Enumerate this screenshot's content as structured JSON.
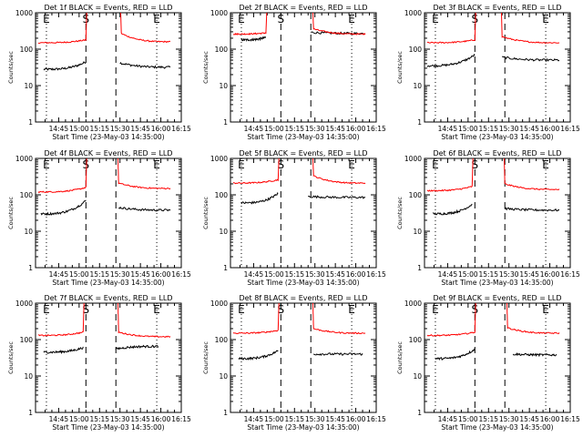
{
  "colors": {
    "events": "#000000",
    "lld": "#ff0000",
    "background": "#ffffff"
  },
  "chart_data": {
    "type": "line",
    "layout": "3x3 grid of panels",
    "yscale": "log",
    "ylim": [
      1,
      1000
    ],
    "ytick_labels": [
      "1",
      "10",
      "100",
      "1000"
    ],
    "ylabel": "Counts/sec",
    "xtick_labels": [
      "14:45",
      "15:00",
      "15:15",
      "15:30",
      "15:45",
      "16:00",
      "16:15"
    ],
    "xlim_minutes_after_start": [
      -7,
      100
    ],
    "xlabel": "Start Time (23-May-03 14:35:00)",
    "interval_markers": [
      {
        "label": "E",
        "minutes": 1,
        "style": "dotted"
      },
      {
        "label": "S",
        "minutes": 30,
        "style": "dashed"
      },
      {
        "label": "",
        "minutes": 52,
        "style": "dashed"
      },
      {
        "label": "E",
        "minutes": 82,
        "style": "dotted"
      }
    ],
    "panels": [
      {
        "title": "Det 1f BLACK = Events, RED = LLD",
        "series": [
          {
            "name": "Events",
            "color": "#000000",
            "before": [
              [
                -1,
                28
              ],
              [
                30,
                45
              ]
            ],
            "after": [
              [
                55,
                42
              ],
              [
                92,
                32
              ]
            ]
          },
          {
            "name": "LLD",
            "color": "#ff0000",
            "before": [
              [
                -5,
                150
              ],
              [
                30,
                180
              ]
            ],
            "after": [
              [
                56,
                270
              ],
              [
                92,
                160
              ]
            ]
          }
        ]
      },
      {
        "title": "Det 2f BLACK = Events, RED = LLD",
        "series": [
          {
            "name": "Events",
            "color": "#000000",
            "before": [
              [
                1,
                180
              ],
              [
                19,
                210
              ]
            ],
            "after": [
              [
                52,
                290
              ],
              [
                92,
                270
              ]
            ]
          },
          {
            "name": "LLD",
            "color": "#ff0000",
            "before": [
              [
                -5,
                260
              ],
              [
                19,
                280
              ]
            ],
            "after": [
              [
                54,
                360
              ],
              [
                92,
                260
              ]
            ]
          }
        ]
      },
      {
        "title": "Det 3f BLACK = Events, RED = LLD",
        "series": [
          {
            "name": "Events",
            "color": "#000000",
            "before": [
              [
                -5,
                35
              ],
              [
                30,
                70
              ]
            ],
            "after": [
              [
                50,
                60
              ],
              [
                92,
                50
              ]
            ]
          },
          {
            "name": "LLD",
            "color": "#ff0000",
            "before": [
              [
                -5,
                150
              ],
              [
                30,
                180
              ]
            ],
            "after": [
              [
                50,
                220
              ],
              [
                92,
                150
              ]
            ]
          }
        ]
      },
      {
        "title": "Det 4f BLACK = Events, RED = LLD",
        "series": [
          {
            "name": "Events",
            "color": "#000000",
            "before": [
              [
                -3,
                30
              ],
              [
                30,
                70
              ]
            ],
            "after": [
              [
                54,
                45
              ],
              [
                92,
                38
              ]
            ]
          },
          {
            "name": "LLD",
            "color": "#ff0000",
            "before": [
              [
                -5,
                120
              ],
              [
                30,
                160
              ]
            ],
            "after": [
              [
                54,
                210
              ],
              [
                92,
                150
              ]
            ]
          }
        ]
      },
      {
        "title": "Det 5f BLACK = Events, RED = LLD",
        "series": [
          {
            "name": "Events",
            "color": "#000000",
            "before": [
              [
                1,
                60
              ],
              [
                28,
                110
              ]
            ],
            "after": [
              [
                50,
                90
              ],
              [
                92,
                85
              ]
            ]
          },
          {
            "name": "LLD",
            "color": "#ff0000",
            "before": [
              [
                -5,
                210
              ],
              [
                28,
                260
              ]
            ],
            "after": [
              [
                54,
                330
              ],
              [
                92,
                210
              ]
            ]
          }
        ]
      },
      {
        "title": "Det 6f BLACK = Events, RED = LLD",
        "series": [
          {
            "name": "Events",
            "color": "#000000",
            "before": [
              [
                -1,
                30
              ],
              [
                28,
                55
              ]
            ],
            "after": [
              [
                52,
                42
              ],
              [
                92,
                38
              ]
            ]
          },
          {
            "name": "LLD",
            "color": "#ff0000",
            "before": [
              [
                -5,
                130
              ],
              [
                28,
                170
              ]
            ],
            "after": [
              [
                52,
                200
              ],
              [
                92,
                140
              ]
            ]
          }
        ]
      },
      {
        "title": "Det 7f BLACK = Events, RED = LLD",
        "series": [
          {
            "name": "Events",
            "color": "#000000",
            "before": [
              [
                -1,
                45
              ],
              [
                28,
                60
              ]
            ],
            "after": [
              [
                52,
                55
              ],
              [
                83,
                65
              ]
            ]
          },
          {
            "name": "LLD",
            "color": "#ff0000",
            "before": [
              [
                -5,
                130
              ],
              [
                28,
                160
              ]
            ],
            "after": [
              [
                54,
                160
              ],
              [
                92,
                120
              ]
            ]
          }
        ]
      },
      {
        "title": "Det 8f BLACK = Events, RED = LLD",
        "series": [
          {
            "name": "Events",
            "color": "#000000",
            "before": [
              [
                -1,
                30
              ],
              [
                28,
                50
              ]
            ],
            "after": [
              [
                54,
                40
              ],
              [
                90,
                40
              ]
            ]
          },
          {
            "name": "LLD",
            "color": "#ff0000",
            "before": [
              [
                -5,
                150
              ],
              [
                28,
                180
              ]
            ],
            "after": [
              [
                54,
                200
              ],
              [
                92,
                150
              ]
            ]
          }
        ]
      },
      {
        "title": "Det 9f BLACK = Events, RED = LLD",
        "series": [
          {
            "name": "Events",
            "color": "#000000",
            "before": [
              [
                1,
                30
              ],
              [
                30,
                55
              ]
            ],
            "after": [
              [
                58,
                40
              ],
              [
                90,
                38
              ]
            ]
          },
          {
            "name": "LLD",
            "color": "#ff0000",
            "before": [
              [
                -5,
                130
              ],
              [
                30,
                160
              ]
            ],
            "after": [
              [
                54,
                210
              ],
              [
                92,
                150
              ]
            ]
          }
        ]
      }
    ]
  }
}
